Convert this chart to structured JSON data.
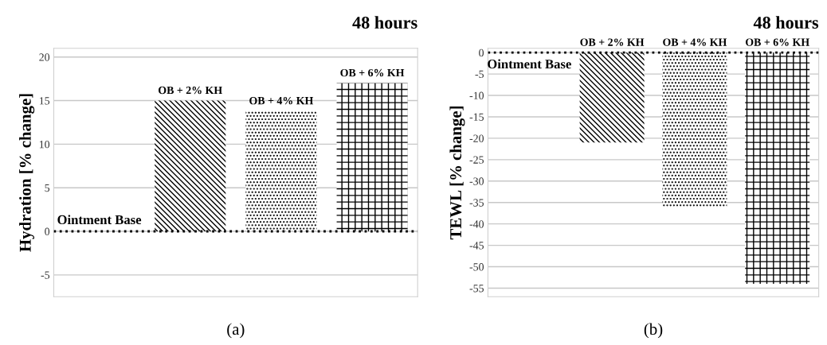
{
  "chart_data": [
    {
      "type": "bar",
      "title": "48 hours",
      "ylabel": "Hydration [% change]",
      "categories": [
        "Ointment Base",
        "OB + 2% KH",
        "OB + 4% KH",
        "OB + 6% KH"
      ],
      "values": [
        0,
        15,
        13.8,
        17
      ],
      "colors": [
        "#000000",
        "#000000",
        "#000000",
        "#000000"
      ],
      "ylim": [
        -7.5,
        21
      ],
      "yticks": [
        -5,
        0,
        5,
        10,
        15,
        20
      ],
      "grid": "y",
      "tick_labels": "y",
      "ref_lines": [
        {
          "axis": "y",
          "value": 0,
          "line_style": "dotted",
          "color": "#000000"
        }
      ],
      "annotations": [
        "(a)"
      ]
    },
    {
      "type": "bar",
      "title": "48 hours",
      "ylabel": "TEWL [% change]",
      "categories": [
        "Ointment Base",
        "OB + 2% KH",
        "OB + 4% KH",
        "OB + 6% KH"
      ],
      "values": [
        0,
        -21,
        -36,
        -54
      ],
      "colors": [
        "#000000",
        "#000000",
        "#000000",
        "#000000"
      ],
      "ylim": [
        -57,
        1
      ],
      "yticks": [
        -55,
        -50,
        -45,
        -40,
        -35,
        -30,
        -25,
        -20,
        -15,
        -10,
        -5,
        0
      ],
      "grid": "y",
      "tick_labels": "y",
      "ref_lines": [
        {
          "axis": "y",
          "value": 0,
          "line_style": "dotted",
          "color": "#000000"
        }
      ],
      "annotations": [
        "(b)"
      ]
    }
  ]
}
